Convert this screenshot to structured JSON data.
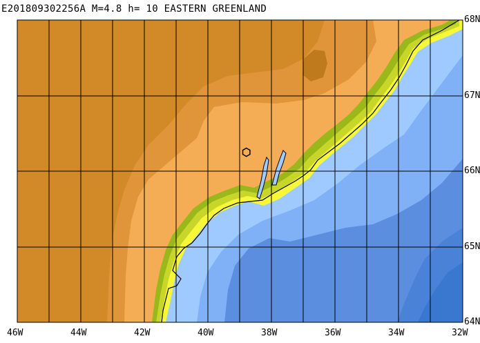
{
  "title": "E201809302256A  M=4.8  h= 10  EASTERN GREENLAND",
  "lon_labels": [
    "46W",
    "44W",
    "42W",
    "40W",
    "38W",
    "36W",
    "34W",
    "32W"
  ],
  "lat_labels": [
    "68N",
    "67N",
    "66N",
    "65N",
    "64N"
  ],
  "map_extent": {
    "lon_range": [
      -46,
      -32
    ],
    "lat_range": [
      64,
      68
    ]
  },
  "event": {
    "lon": -38.8,
    "lat": 66.25,
    "symbol": "hexagon-outline"
  },
  "colors": {
    "land_high": "#d28a28",
    "land_mid": "#e0953a",
    "land_low": "#f5ad55",
    "land_coast_green": "#9ab81a",
    "land_coast_yellowgreen": "#c8d62a",
    "land_coast_yellow": "#f7f73a",
    "sea_shallow": "#9fcaff",
    "sea_mid": "#80b0f5",
    "sea_deep": "#5c8ee0",
    "sea_deepest": "#3a78d0",
    "grid": "#000000"
  }
}
